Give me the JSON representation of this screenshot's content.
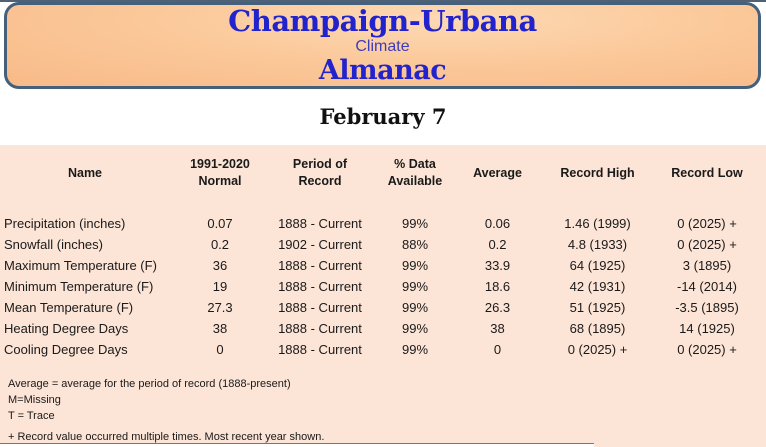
{
  "header": {
    "title_line1": "Champaign-Urbana",
    "title_line2": "Climate",
    "title_line3": "Almanac",
    "title_color": "#2323cd",
    "subtitle_color": "#3d3dbb",
    "fill_color": "#fbc899",
    "border_color": "#44607c"
  },
  "date_heading": "February 7",
  "table": {
    "background_color": "#fce4d6",
    "headers": [
      "Name",
      "1991-2020\nNormal",
      "Period of\nRecord",
      "% Data\nAvailable",
      "Average",
      "Record High",
      "Record Low"
    ],
    "rows": [
      [
        "Precipitation (inches)",
        "0.07",
        "1888 - Current",
        "99%",
        "0.06",
        "1.46 (1999)",
        "0 (2025) +"
      ],
      [
        "Snowfall (inches)",
        "0.2",
        "1902 - Current",
        "88%",
        "0.2",
        "4.8 (1933)",
        "0 (2025) +"
      ],
      [
        "Maximum Temperature (F)",
        "36",
        "1888 - Current",
        "99%",
        "33.9",
        "64 (1925)",
        "3 (1895)"
      ],
      [
        "Minimum Temperature (F)",
        "19",
        "1888 - Current",
        "99%",
        "18.6",
        "42 (1931)",
        "-14 (2014)"
      ],
      [
        "Mean Temperature (F)",
        "27.3",
        "1888 - Current",
        "99%",
        "26.3",
        "51 (1925)",
        "-3.5 (1895)"
      ],
      [
        "Heating Degree Days",
        "38",
        "1888 - Current",
        "99%",
        "38",
        "68 (1895)",
        "14 (1925)"
      ],
      [
        "Cooling Degree Days",
        "0",
        "1888 - Current",
        "99%",
        "0",
        "0 (2025) +",
        "0 (2025) +"
      ]
    ]
  },
  "footnotes": [
    "Average = average for the period of record (1888-present)",
    "M=Missing",
    "T = Trace",
    "+ Record value occurred multiple times. Most recent year shown."
  ]
}
